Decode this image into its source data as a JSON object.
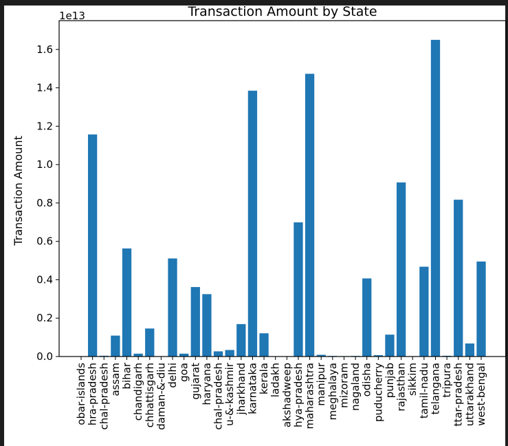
{
  "chart_data": {
    "type": "bar",
    "title": "Transaction Amount by State",
    "xlabel": "",
    "ylabel": "Transaction Amount",
    "y_offset_label": "1e13",
    "ylim": [
      0,
      1.75
    ],
    "y_scale_note": "values in units of 1e13",
    "yticks": [
      0.0,
      0.2,
      0.4,
      0.6,
      0.8,
      1.0,
      1.2,
      1.4,
      1.6
    ],
    "ytick_labels": [
      "0.0",
      "0.2",
      "0.4",
      "0.6",
      "0.8",
      "1.0",
      "1.2",
      "1.4",
      "1.6"
    ],
    "bar_color": "#1f77b4",
    "grid": false,
    "categories": [
      "obar-islands",
      "hra-pradesh",
      "chal-pradesh",
      "assam",
      "bihar",
      "chandigarh",
      "chhattisgarh",
      "daman-&-diu",
      "delhi",
      "goa",
      "gujarat",
      "haryana",
      "chal-pradesh",
      "u-&-kashmir",
      "jharkhand",
      "karnataka",
      "kerala",
      "ladakh",
      "akshadweep",
      "hya-pradesh",
      "maharashtra",
      "manipur",
      "meghalaya",
      "mizoram",
      "nagaland",
      "odisha",
      "puducherry",
      "punjab",
      "rajasthan",
      "sikkim",
      "tamil-nadu",
      "telangana",
      "tripura",
      "ttar-pradesh",
      "uttarakhand",
      "west-bengal"
    ],
    "values": [
      0.0002,
      1.157,
      0.004,
      0.109,
      0.563,
      0.015,
      0.146,
      0.0005,
      0.511,
      0.015,
      0.362,
      0.325,
      0.027,
      0.034,
      0.169,
      1.385,
      0.121,
      0.0003,
      0.0001,
      0.699,
      1.473,
      0.009,
      0.003,
      0.002,
      0.003,
      0.407,
      0.007,
      0.114,
      0.907,
      0.002,
      0.468,
      1.65,
      0.004,
      0.817,
      0.068,
      0.495
    ]
  }
}
